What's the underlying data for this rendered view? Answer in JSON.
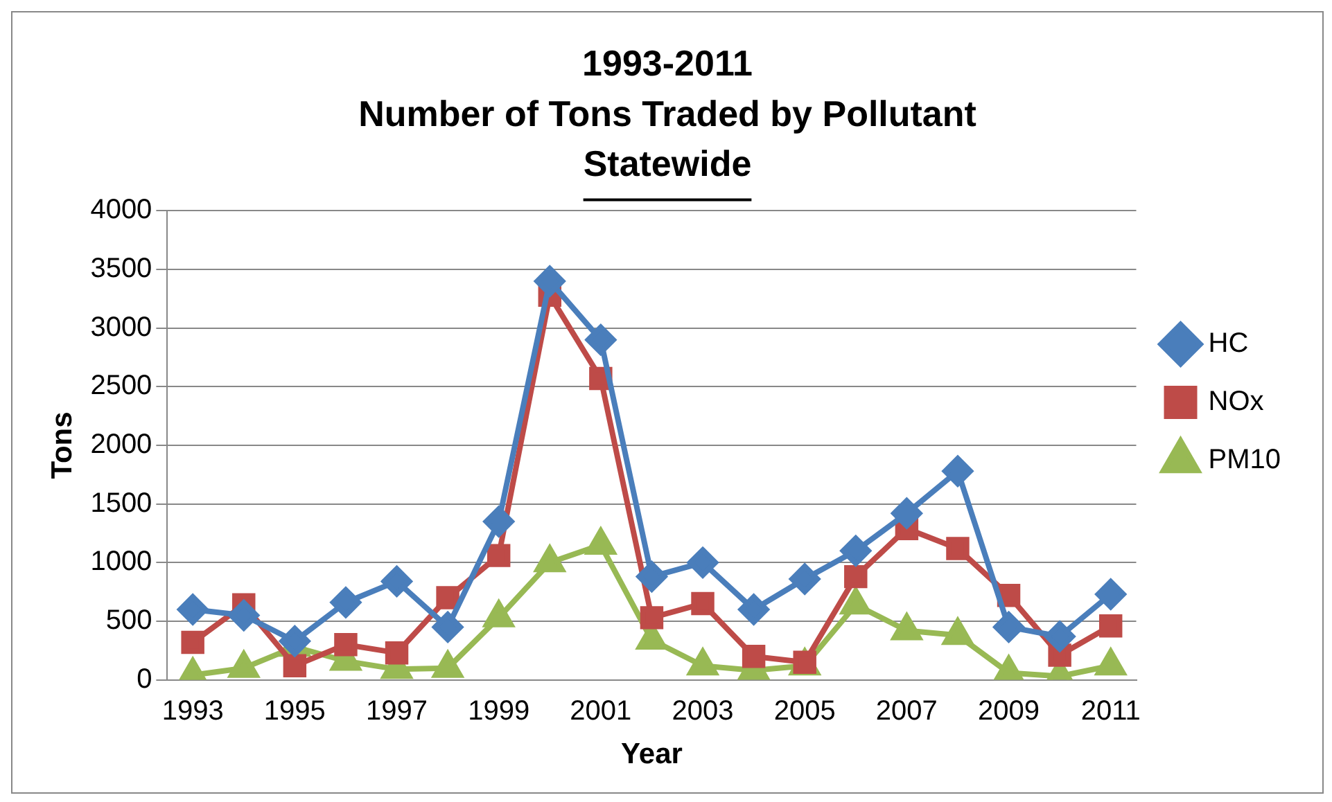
{
  "chart_data": {
    "type": "line",
    "title": [
      "1993-2011",
      "Number of Tons Traded by Pollutant",
      "Statewide"
    ],
    "xlabel": "Year",
    "ylabel": "Tons",
    "categories": [
      "1993",
      null,
      "1995",
      null,
      "1997",
      null,
      "1999",
      null,
      "2001",
      null,
      "2003",
      null,
      "2005",
      null,
      "2007",
      null,
      "2009",
      null,
      "2011"
    ],
    "series": [
      {
        "name": "HC",
        "color": "#4a7ebb",
        "marker": "diamond",
        "values": [
          600,
          550,
          330,
          660,
          840,
          450,
          1350,
          3400,
          2900,
          880,
          1000,
          600,
          860,
          1100,
          1420,
          1780,
          450,
          370,
          730
        ]
      },
      {
        "name": "NOx",
        "color": "#be4b48",
        "marker": "square",
        "values": [
          320,
          640,
          120,
          300,
          230,
          700,
          1060,
          3280,
          2570,
          530,
          650,
          200,
          150,
          880,
          1290,
          1120,
          720,
          210,
          460
        ]
      },
      {
        "name": "PM10",
        "color": "#98b954",
        "marker": "triangle",
        "values": [
          40,
          100,
          280,
          160,
          90,
          100,
          530,
          1000,
          1150,
          340,
          120,
          80,
          120,
          640,
          420,
          380,
          60,
          30,
          120
        ]
      }
    ],
    "ylim": [
      0,
      4000
    ],
    "yticks": [
      0,
      500,
      1000,
      1500,
      2000,
      2500,
      3000,
      3500,
      4000
    ],
    "grid": "y",
    "legend": "right"
  }
}
